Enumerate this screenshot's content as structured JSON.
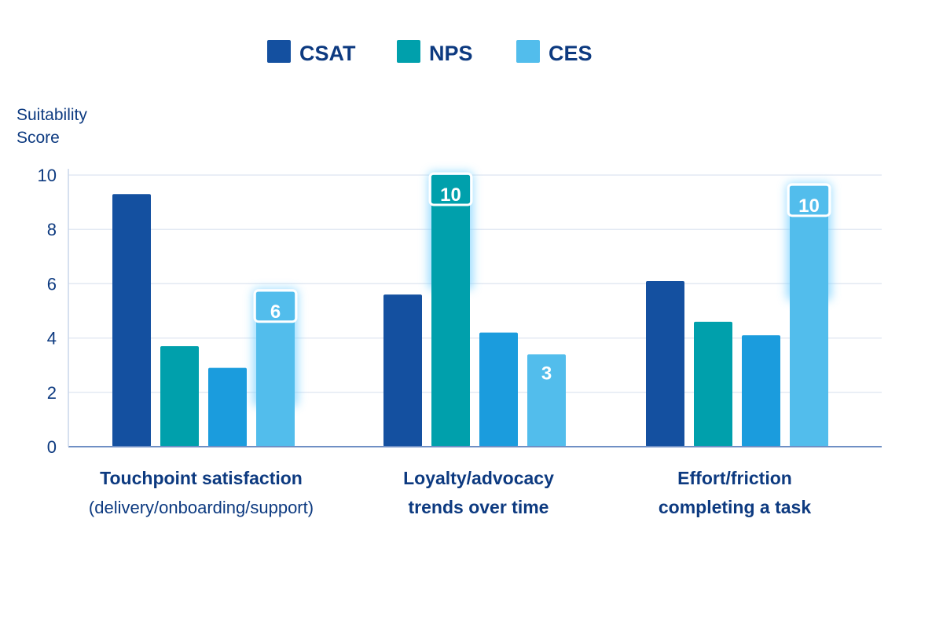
{
  "chart_data": {
    "type": "bar",
    "title": "",
    "ylabel_lines": [
      "Suitability",
      "Score"
    ],
    "xlabel": "",
    "ylim": [
      0,
      10
    ],
    "yticks": [
      "0",
      "2",
      "4",
      "6",
      "8",
      "10"
    ],
    "grid": true,
    "legend_placement": "top-center",
    "categories": [
      {
        "line1": "Touchpoint satisfaction",
        "line2": "(delivery/onboarding/support)"
      },
      {
        "line1": "Loyalty/advocacy",
        "line2": "trends over time"
      },
      {
        "line1": "Effort/friction",
        "line2": "completing a task"
      }
    ],
    "series": [
      {
        "name": "CSAT",
        "color": "#1450a0",
        "values": [
          9.3,
          5.6,
          6.1
        ]
      },
      {
        "name": "NPS",
        "color": "#00a0ac",
        "values": [
          3.7,
          10,
          4.6
        ]
      },
      {
        "color": "#1b9cdd",
        "values": [
          2.9,
          4.2,
          4.1
        ]
      },
      {
        "name": "CES",
        "color": "#52bdec",
        "values": [
          5.7,
          3.4,
          9.6
        ]
      }
    ],
    "data_labels": [
      {
        "category": 0,
        "series": 3,
        "text": "6",
        "highlight": true
      },
      {
        "category": 1,
        "series": 1,
        "text": "10",
        "highlight": true
      },
      {
        "category": 1,
        "series": 3,
        "text": "3",
        "highlight": false
      },
      {
        "category": 2,
        "series": 3,
        "text": "10",
        "highlight": true
      }
    ],
    "text_color": "#0d3a80"
  }
}
